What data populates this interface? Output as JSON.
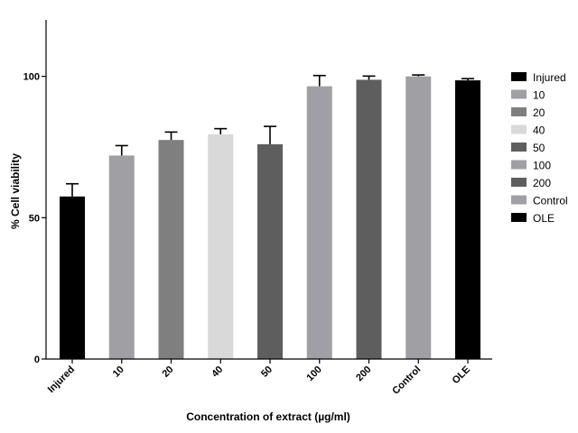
{
  "chart_data": {
    "type": "bar",
    "title": "",
    "xlabel": "Concentration of extract (µg/ml)",
    "ylabel": "% Cell viability",
    "ylim": [
      0,
      120
    ],
    "yticks": [
      "0",
      "50",
      "100"
    ],
    "yticks_values": [
      0,
      50,
      100
    ],
    "grid": false,
    "legend_position": "right",
    "categories": [
      "Injured",
      "10",
      "20",
      "40",
      "50",
      "100",
      "200",
      "Control",
      "OLE"
    ],
    "values": [
      57.5,
      72,
      77.5,
      79.5,
      76,
      96.5,
      98.8,
      100,
      98.6
    ],
    "errors": [
      4.5,
      3.5,
      2.8,
      2,
      6.3,
      3.8,
      1.3,
      0.5,
      0.6
    ],
    "colors": [
      "#000000",
      "#a0a0a4",
      "#7f7f7f",
      "#d9d9d9",
      "#5e5e5e",
      "#a0a0a4",
      "#5e5e5e",
      "#a0a0a4",
      "#000000"
    ]
  }
}
